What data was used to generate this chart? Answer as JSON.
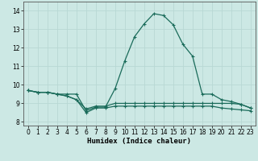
{
  "xlabel": "Humidex (Indice chaleur)",
  "bg_color": "#cce8e4",
  "grid_color": "#b8d8d4",
  "line_color": "#1a6b5a",
  "xlim": [
    -0.5,
    23.5
  ],
  "ylim": [
    7.8,
    14.5
  ],
  "yticks": [
    8,
    9,
    10,
    11,
    12,
    13,
    14
  ],
  "xticks": [
    0,
    1,
    2,
    3,
    4,
    5,
    6,
    7,
    8,
    9,
    10,
    11,
    12,
    13,
    14,
    15,
    16,
    17,
    18,
    19,
    20,
    21,
    22,
    23
  ],
  "series1": [
    9.7,
    9.6,
    9.6,
    9.5,
    9.5,
    9.5,
    8.6,
    8.8,
    8.8,
    9.8,
    11.3,
    12.6,
    13.3,
    13.85,
    13.75,
    13.25,
    12.2,
    11.55,
    9.5,
    9.5,
    9.2,
    9.1,
    8.95,
    8.75
  ],
  "series2": [
    9.7,
    9.6,
    9.6,
    9.5,
    9.4,
    9.2,
    8.7,
    8.85,
    8.85,
    9.0,
    9.0,
    9.0,
    9.0,
    9.0,
    9.0,
    9.0,
    9.0,
    9.0,
    9.0,
    9.0,
    9.0,
    9.0,
    8.95,
    8.75
  ],
  "series3": [
    9.7,
    9.6,
    9.6,
    9.5,
    9.4,
    9.2,
    8.5,
    8.75,
    8.75,
    8.85,
    8.85,
    8.85,
    8.85,
    8.85,
    8.85,
    8.85,
    8.85,
    8.85,
    8.85,
    8.85,
    8.75,
    8.7,
    8.65,
    8.6
  ]
}
